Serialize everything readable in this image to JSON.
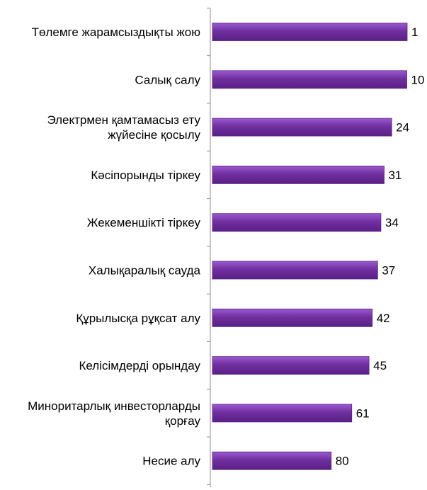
{
  "chart_data": {
    "type": "bar",
    "orientation": "horizontal",
    "categories": [
      [
        "Төлемге жарамсыздықты жою"
      ],
      [
        "Салық салу"
      ],
      [
        "Электрмен қамтамасыз ету",
        "жүйесіне қосылу"
      ],
      [
        "Кәсіпорынды тіркеу"
      ],
      [
        "Жекеменшікті тіркеу"
      ],
      [
        "Халықаралық сауда"
      ],
      [
        "Құрылысқа рұқсат алу"
      ],
      [
        "Келісімдерді орындау"
      ],
      [
        "Миноритарлық инвесторларды",
        "қорғау"
      ],
      [
        "Несие алу"
      ]
    ],
    "values": [
      1,
      10,
      24,
      31,
      34,
      37,
      42,
      45,
      61,
      80
    ],
    "reversed_axis": true,
    "xlim": [
      190,
      0
    ],
    "grid": false,
    "legend": "none",
    "bar_color": "#7030A0",
    "bar_color_light": "#9B59D0",
    "bar_color_dark": "#5A1F86"
  }
}
